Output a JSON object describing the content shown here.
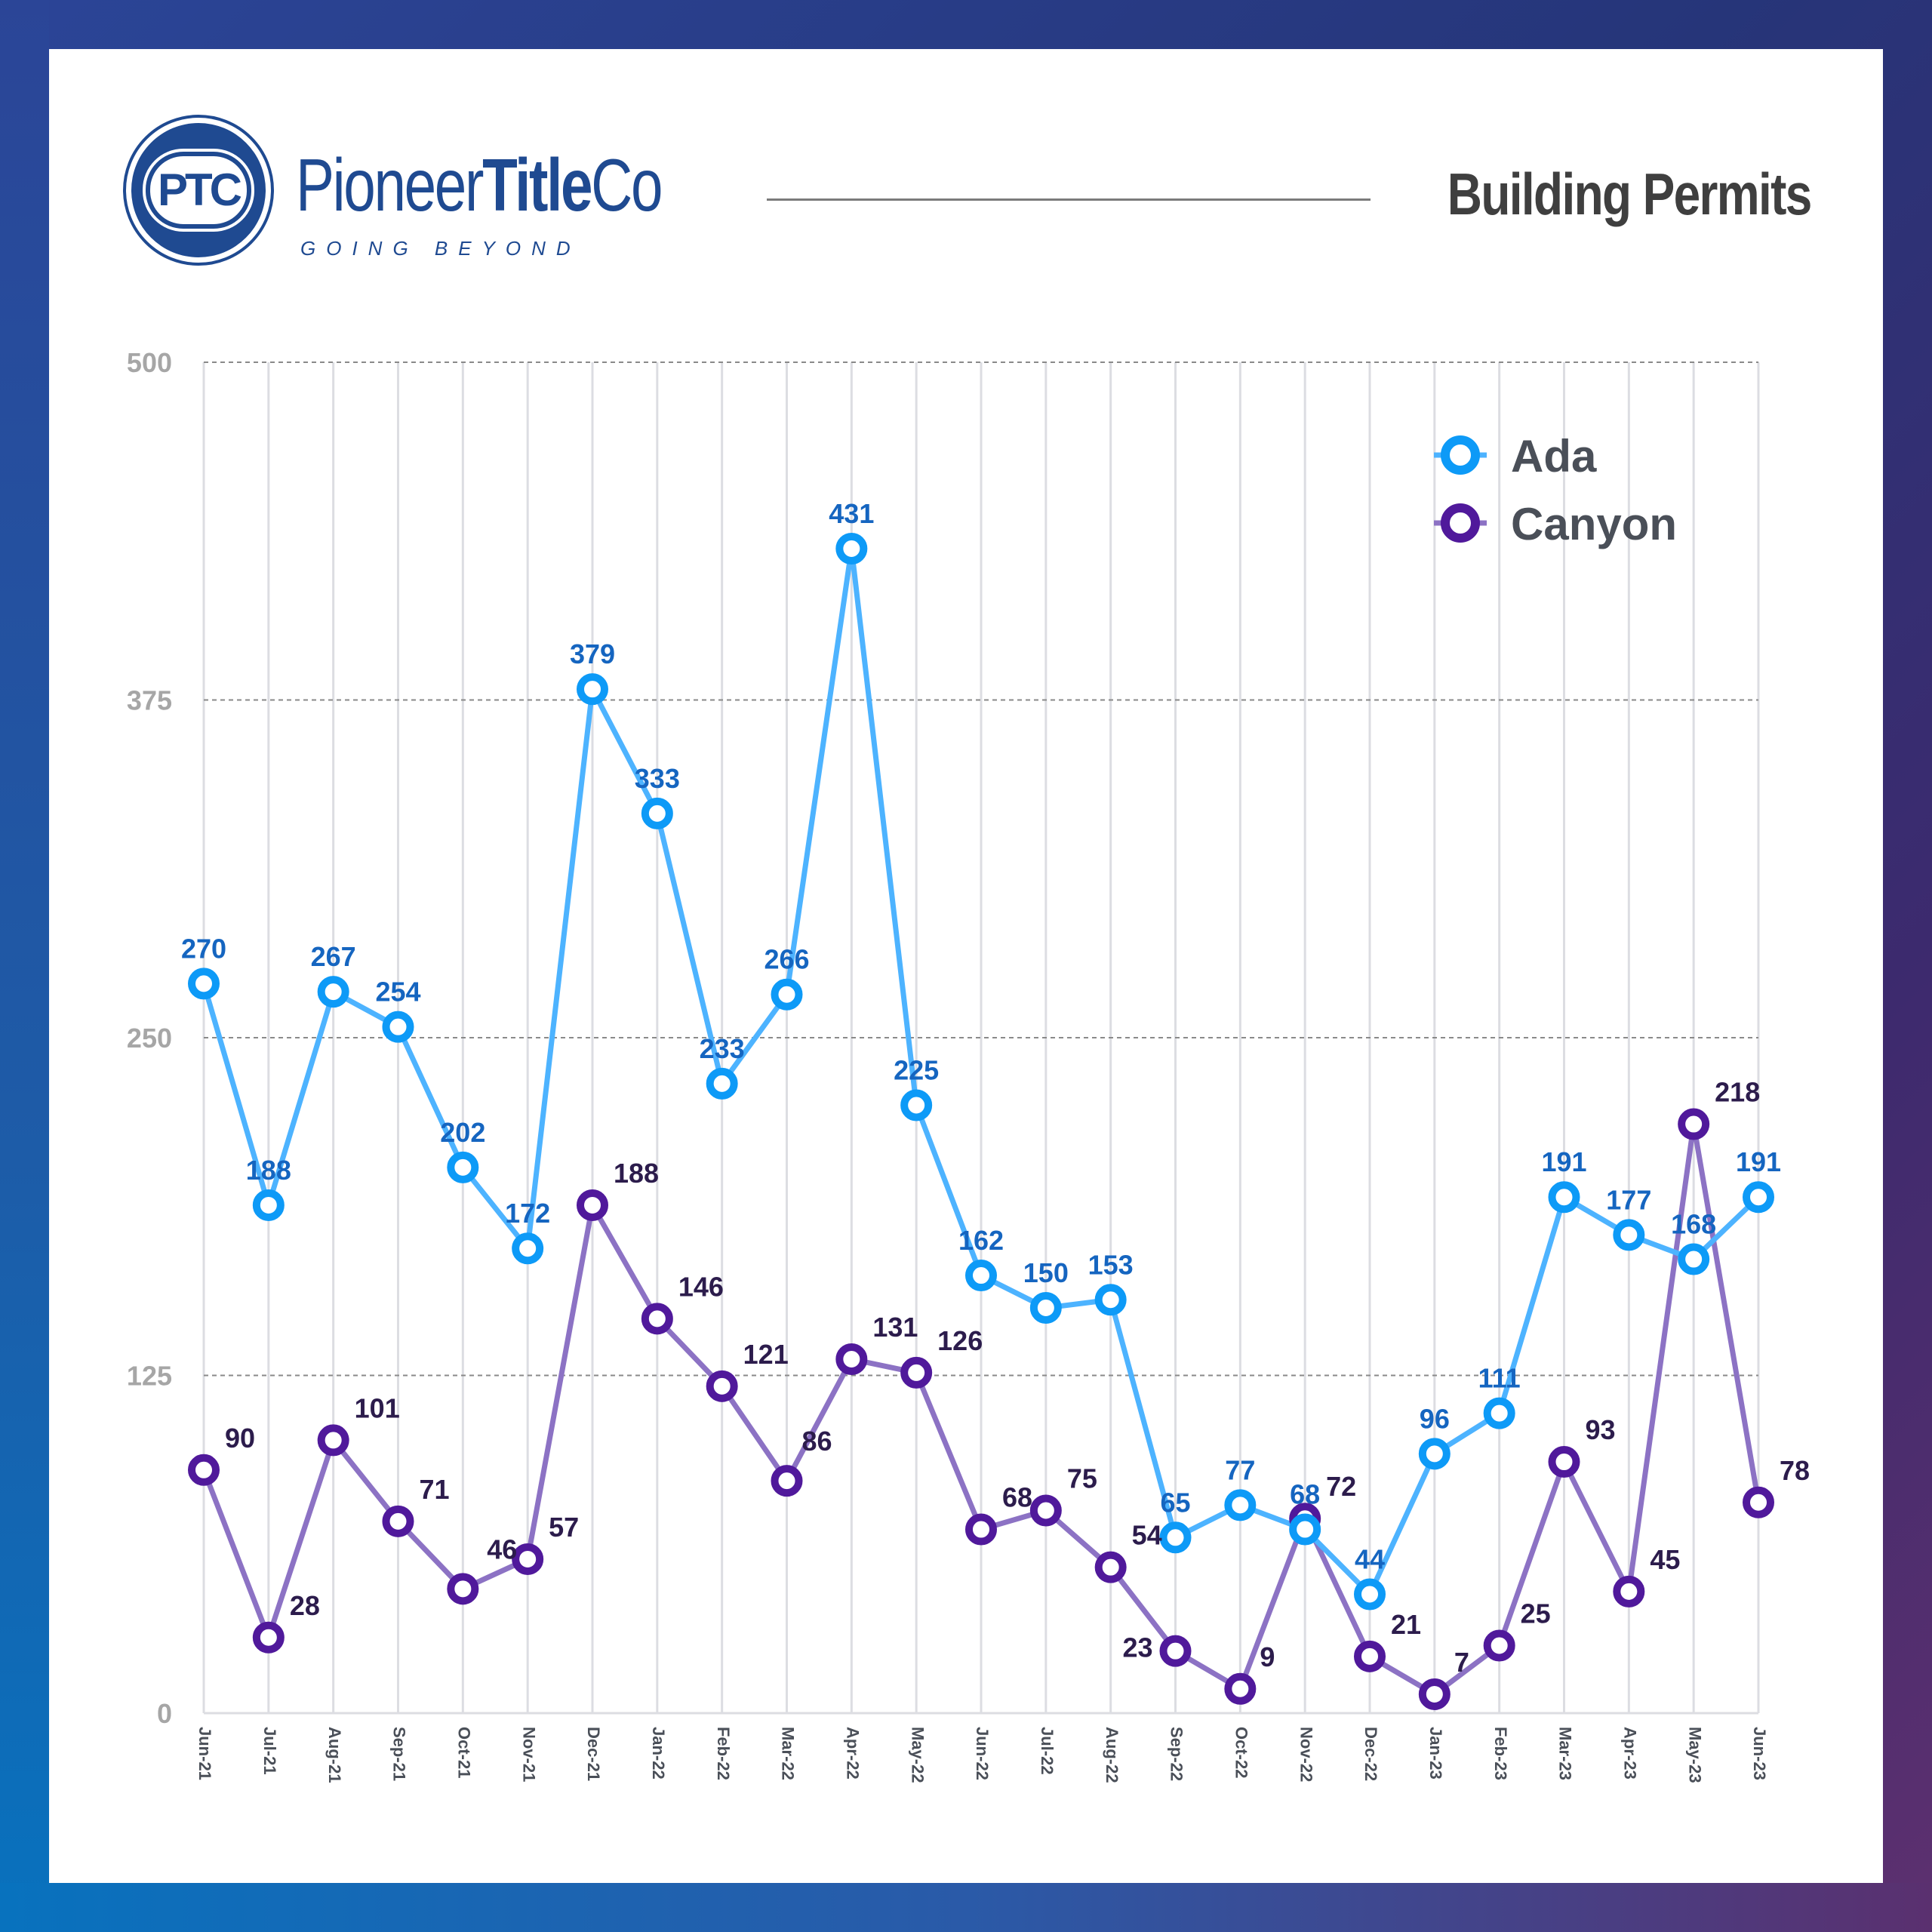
{
  "header": {
    "logo_mark": "PTC",
    "brand_regular": "Pioneer",
    "brand_bold": "Title",
    "brand_suffix": "Co",
    "tagline": "GOING BEYOND",
    "title": "Building Permits"
  },
  "colors": {
    "ada_line": "#4db3ff",
    "ada_marker": "#0d9af7",
    "ada_label": "#1565c0",
    "canyon_line": "#8c72c4",
    "canyon_marker": "#50199b",
    "canyon_label": "#2c1c4c",
    "brand": "#1f4a91"
  },
  "chart_data": {
    "type": "line",
    "title": "Building Permits",
    "xlabel": "",
    "ylabel": "",
    "ylim": [
      0,
      500
    ],
    "yticks": [
      0,
      125,
      250,
      375,
      500
    ],
    "grid": true,
    "legend_position": "top-right",
    "categories": [
      "Jun-21",
      "Jul-21",
      "Aug-21",
      "Sep-21",
      "Oct-21",
      "Nov-21",
      "Dec-21",
      "Jan-22",
      "Feb-22",
      "Mar-22",
      "Apr-22",
      "May-22",
      "Jun-22",
      "Jul-22",
      "Aug-22",
      "Sep-22",
      "Oct-22",
      "Nov-22",
      "Dec-22",
      "Jan-23",
      "Feb-23",
      "Mar-23",
      "Apr-23",
      "May-23",
      "Jun-23"
    ],
    "series": [
      {
        "name": "Ada",
        "values": [
          270,
          188,
          267,
          254,
          202,
          172,
          379,
          333,
          233,
          266,
          431,
          225,
          162,
          150,
          153,
          65,
          77,
          68,
          44,
          96,
          111,
          191,
          177,
          168,
          191
        ]
      },
      {
        "name": "Canyon",
        "values": [
          90,
          28,
          101,
          71,
          46,
          57,
          188,
          146,
          121,
          86,
          131,
          126,
          68,
          75,
          54,
          23,
          9,
          72,
          21,
          7,
          25,
          93,
          45,
          218,
          78
        ]
      }
    ]
  }
}
